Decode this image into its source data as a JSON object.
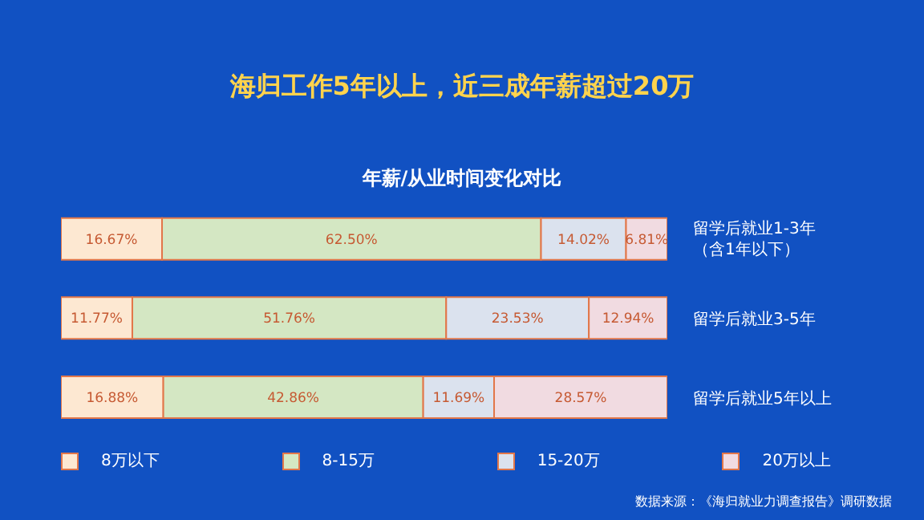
{
  "chart_data": {
    "type": "bar",
    "orientation": "horizontal",
    "stacked": true,
    "title": "海归工作5年以上，近三成年薪超过20万",
    "subtitle": "年薪/从业时间变化对比",
    "categories": [
      "留学后就业1-3年（含1年以下）",
      "留学后就业3-5年",
      "留学后就业5年以上"
    ],
    "xlim": [
      0,
      100
    ],
    "tick_labels": "y",
    "legend": "bottom",
    "series": [
      {
        "name": "8万以下",
        "color": "#fde8d2",
        "values": [
          16.67,
          11.77,
          16.88
        ],
        "value_labels": [
          "16.67%",
          "11.77%",
          "16.88%"
        ]
      },
      {
        "name": "8-15万",
        "color": "#d4e7c3",
        "values": [
          62.5,
          51.76,
          42.86
        ],
        "value_labels": [
          "62.50%",
          "51.76%",
          "42.86%"
        ]
      },
      {
        "name": "15-20万",
        "color": "#dbe2ee",
        "values": [
          14.02,
          23.53,
          11.69
        ],
        "value_labels": [
          "14.02%",
          "23.53%",
          "11.69%"
        ]
      },
      {
        "name": "20万以上",
        "color": "#f1dbe1",
        "values": [
          6.81,
          12.94,
          28.57
        ],
        "value_labels": [
          "6.81%",
          "12.94%",
          "28.57%"
        ]
      }
    ],
    "annotations": [
      "数据来源：《海归就业力调查报告》调研数据"
    ]
  }
}
